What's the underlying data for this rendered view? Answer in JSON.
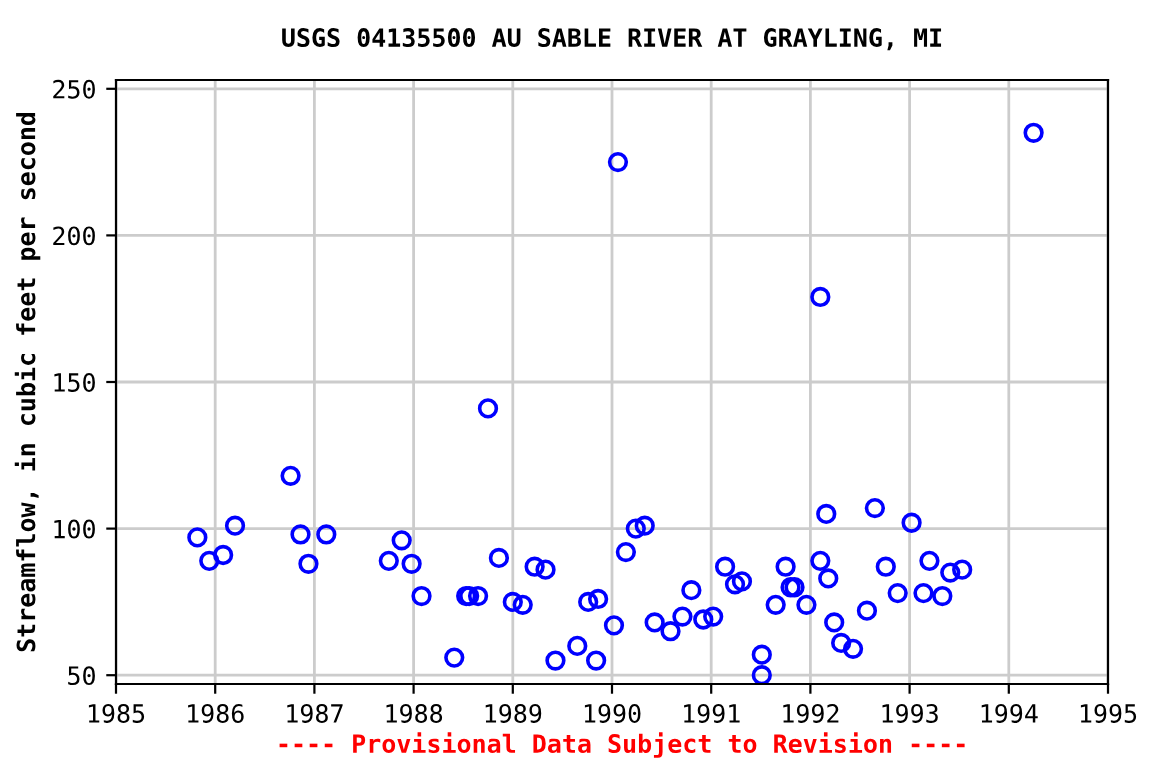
{
  "chart_data": {
    "type": "scatter",
    "title": "USGS 04135500 AU SABLE RIVER AT GRAYLING, MI",
    "ylabel": "Streamflow, in cubic feet per second",
    "annotations": [
      "---- Provisional Data Subject to Revision ----"
    ],
    "series": [
      {
        "color": "#0000ff",
        "x": [
          1985.82,
          1985.94,
          1986.08,
          1986.2,
          1986.76,
          1986.86,
          1986.94,
          1987.12,
          1987.75,
          1987.88,
          1987.98,
          1988.08,
          1988.41,
          1988.53,
          1988.56,
          1988.65,
          1988.75,
          1988.86,
          1989.0,
          1989.1,
          1989.22,
          1989.33,
          1989.43,
          1989.65,
          1989.76,
          1989.86,
          1989.84,
          1990.06,
          1990.02,
          1990.14,
          1990.24,
          1990.33,
          1990.43,
          1990.59,
          1990.71,
          1990.8,
          1990.92,
          1991.02,
          1991.14,
          1991.24,
          1991.31,
          1991.51,
          1991.51,
          1991.65,
          1991.75,
          1991.8,
          1991.84,
          1991.96,
          1992.1,
          1992.1,
          1992.16,
          1992.18,
          1992.24,
          1992.31,
          1992.43,
          1992.57,
          1992.65,
          1992.76,
          1992.88,
          1993.02,
          1993.14,
          1993.2,
          1993.33,
          1993.41,
          1993.53,
          1994.25
        ],
        "values": [
          97,
          89,
          91,
          101,
          118,
          98,
          88,
          98,
          89,
          96,
          88,
          77,
          56,
          77,
          77,
          77,
          141,
          90,
          75,
          74,
          87,
          86,
          55,
          60,
          75,
          76,
          55,
          225,
          67,
          92,
          100,
          101,
          68,
          65,
          70,
          79,
          69,
          70,
          87,
          81,
          82,
          57,
          50,
          74,
          87,
          80,
          80,
          74,
          179,
          89,
          105,
          83,
          68,
          61,
          59,
          72,
          107,
          87,
          78,
          102,
          78,
          89,
          77,
          85,
          86,
          235
        ]
      }
    ],
    "xlim": [
      1985,
      1995
    ],
    "xticks": [
      1985,
      1986,
      1987,
      1988,
      1989,
      1990,
      1991,
      1992,
      1993,
      1994,
      1995
    ],
    "ylim": [
      47,
      253
    ],
    "yticks": [
      50,
      100,
      150,
      200,
      250
    ],
    "grid": true,
    "marker": "circle"
  }
}
